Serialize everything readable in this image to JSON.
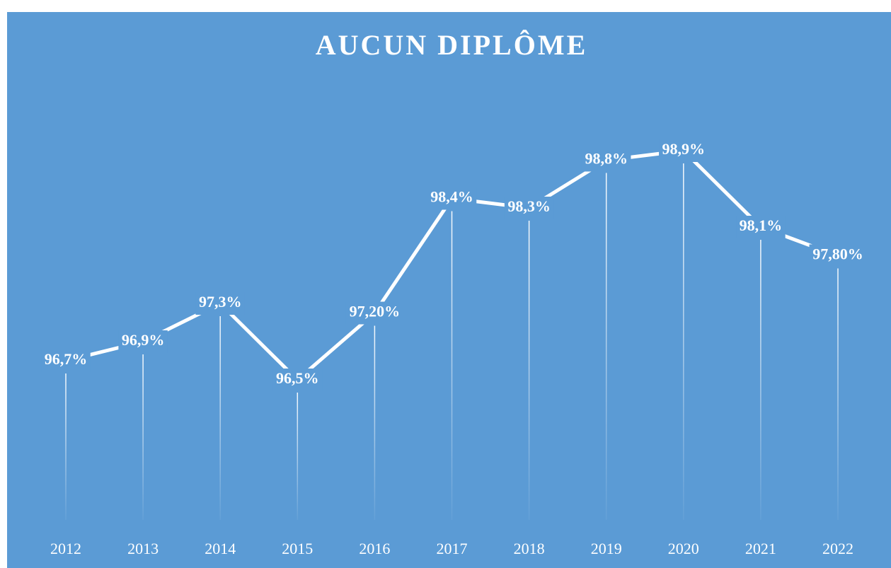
{
  "chart_data": {
    "type": "line",
    "title": "AUCUN DIPLÔME",
    "categories": [
      "2012",
      "2013",
      "2014",
      "2015",
      "2016",
      "2017",
      "2018",
      "2019",
      "2020",
      "2021",
      "2022"
    ],
    "values": [
      96.7,
      96.9,
      97.3,
      96.5,
      97.2,
      98.4,
      98.3,
      98.8,
      98.9,
      98.1,
      97.8
    ],
    "value_labels": [
      "96,7%",
      "96,9%",
      "97,3%",
      "96,5%",
      "97,20%",
      "98,4%",
      "98,3%",
      "98,8%",
      "98,9%",
      "98,1%",
      "97,80%"
    ],
    "color": "#ffffff",
    "background": "#5b9bd5"
  }
}
